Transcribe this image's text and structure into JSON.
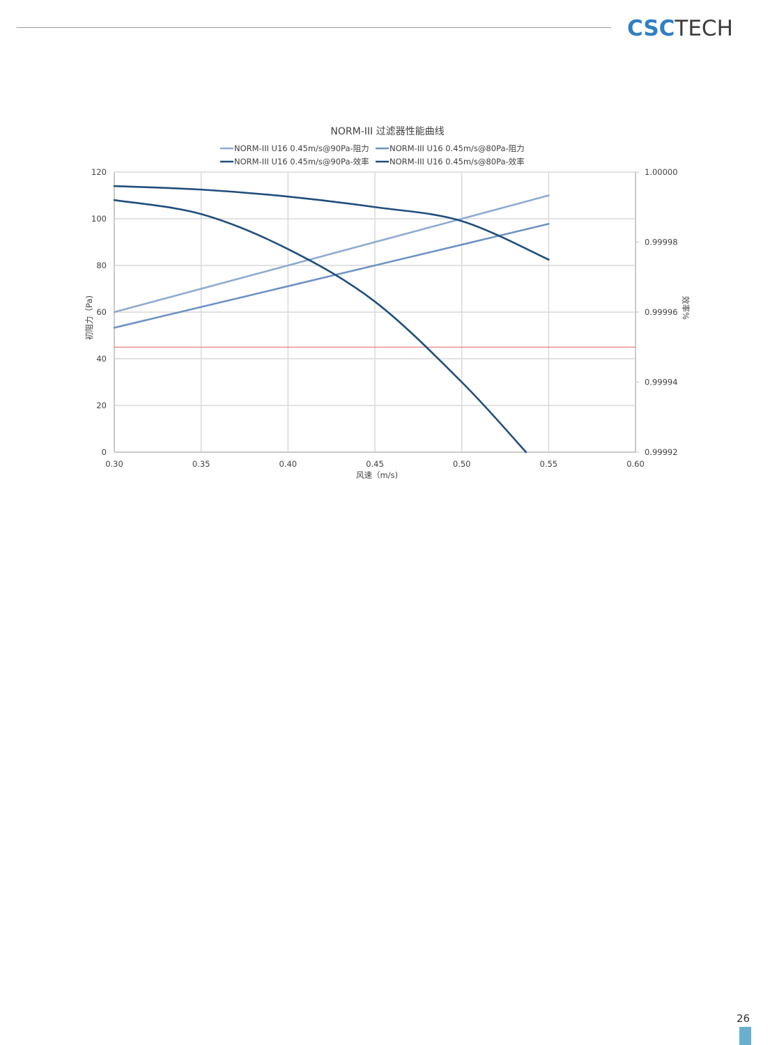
{
  "header": {
    "logo_part1": "CSC",
    "logo_part2": "TECH"
  },
  "footer": {
    "page_number": "26"
  },
  "colors": {
    "resist_90": "#8eaad0",
    "resist_80": "#6d93c4",
    "eff_90": "#1f4e7c",
    "eff_80": "#1f4e7c",
    "threshold": "#e06060",
    "grid": "#d9d9d9",
    "logo_blue": "#2f7fc4",
    "page_bar": "#6aaed0"
  },
  "chart_data": {
    "type": "line",
    "title": "NORM-III 过滤器性能曲线",
    "xlabel": "风速（m/s)",
    "ylabel": "初阻力（Pa)",
    "y2label": "效率%",
    "xlim": [
      0.3,
      0.6
    ],
    "ylim": [
      0,
      120
    ],
    "y2lim": [
      0.99992,
      1.0
    ],
    "x_ticks": [
      "0.30",
      "0.35",
      "0.40",
      "0.45",
      "0.50",
      "0.55",
      "0.60"
    ],
    "y_ticks": [
      "0",
      "20",
      "40",
      "60",
      "80",
      "100",
      "120"
    ],
    "y2_ticks": [
      "0.99992",
      "0.99994",
      "0.99996",
      "0.99998",
      "1.00000"
    ],
    "grid": true,
    "legend_position": "top",
    "threshold_line": {
      "axis": "y",
      "value": 45
    },
    "series": [
      {
        "name": "NORM-III U16 0.45m/s@90Pa-阻力",
        "axis": "left",
        "color_key": "resist_90",
        "x": [
          0.3,
          0.35,
          0.4,
          0.45,
          0.5,
          0.55
        ],
        "y": [
          60.0,
          70.0,
          80.0,
          90.0,
          100.0,
          110.0
        ]
      },
      {
        "name": "NORM-III U16 0.45m/s@80Pa-阻力",
        "axis": "left",
        "color_key": "resist_80",
        "x": [
          0.3,
          0.35,
          0.4,
          0.45,
          0.5,
          0.55
        ],
        "y": [
          53.3,
          62.2,
          71.1,
          80.0,
          88.9,
          97.8
        ]
      },
      {
        "name": "NORM-III U16 0.45m/s@90Pa-效率",
        "axis": "right",
        "color_key": "eff_90",
        "x": [
          0.3,
          0.35,
          0.4,
          0.45,
          0.5,
          0.55
        ],
        "y": [
          0.999996,
          0.999995,
          0.999993,
          0.99999,
          0.999986,
          0.999975
        ]
      },
      {
        "name": "NORM-III U16 0.45m/s@80Pa-效率",
        "axis": "right",
        "color_key": "eff_80",
        "x": [
          0.3,
          0.35,
          0.4,
          0.45,
          0.5,
          0.537
        ],
        "y": [
          0.999992,
          0.999988,
          0.999978,
          0.999963,
          0.99994,
          0.99992
        ]
      }
    ]
  }
}
